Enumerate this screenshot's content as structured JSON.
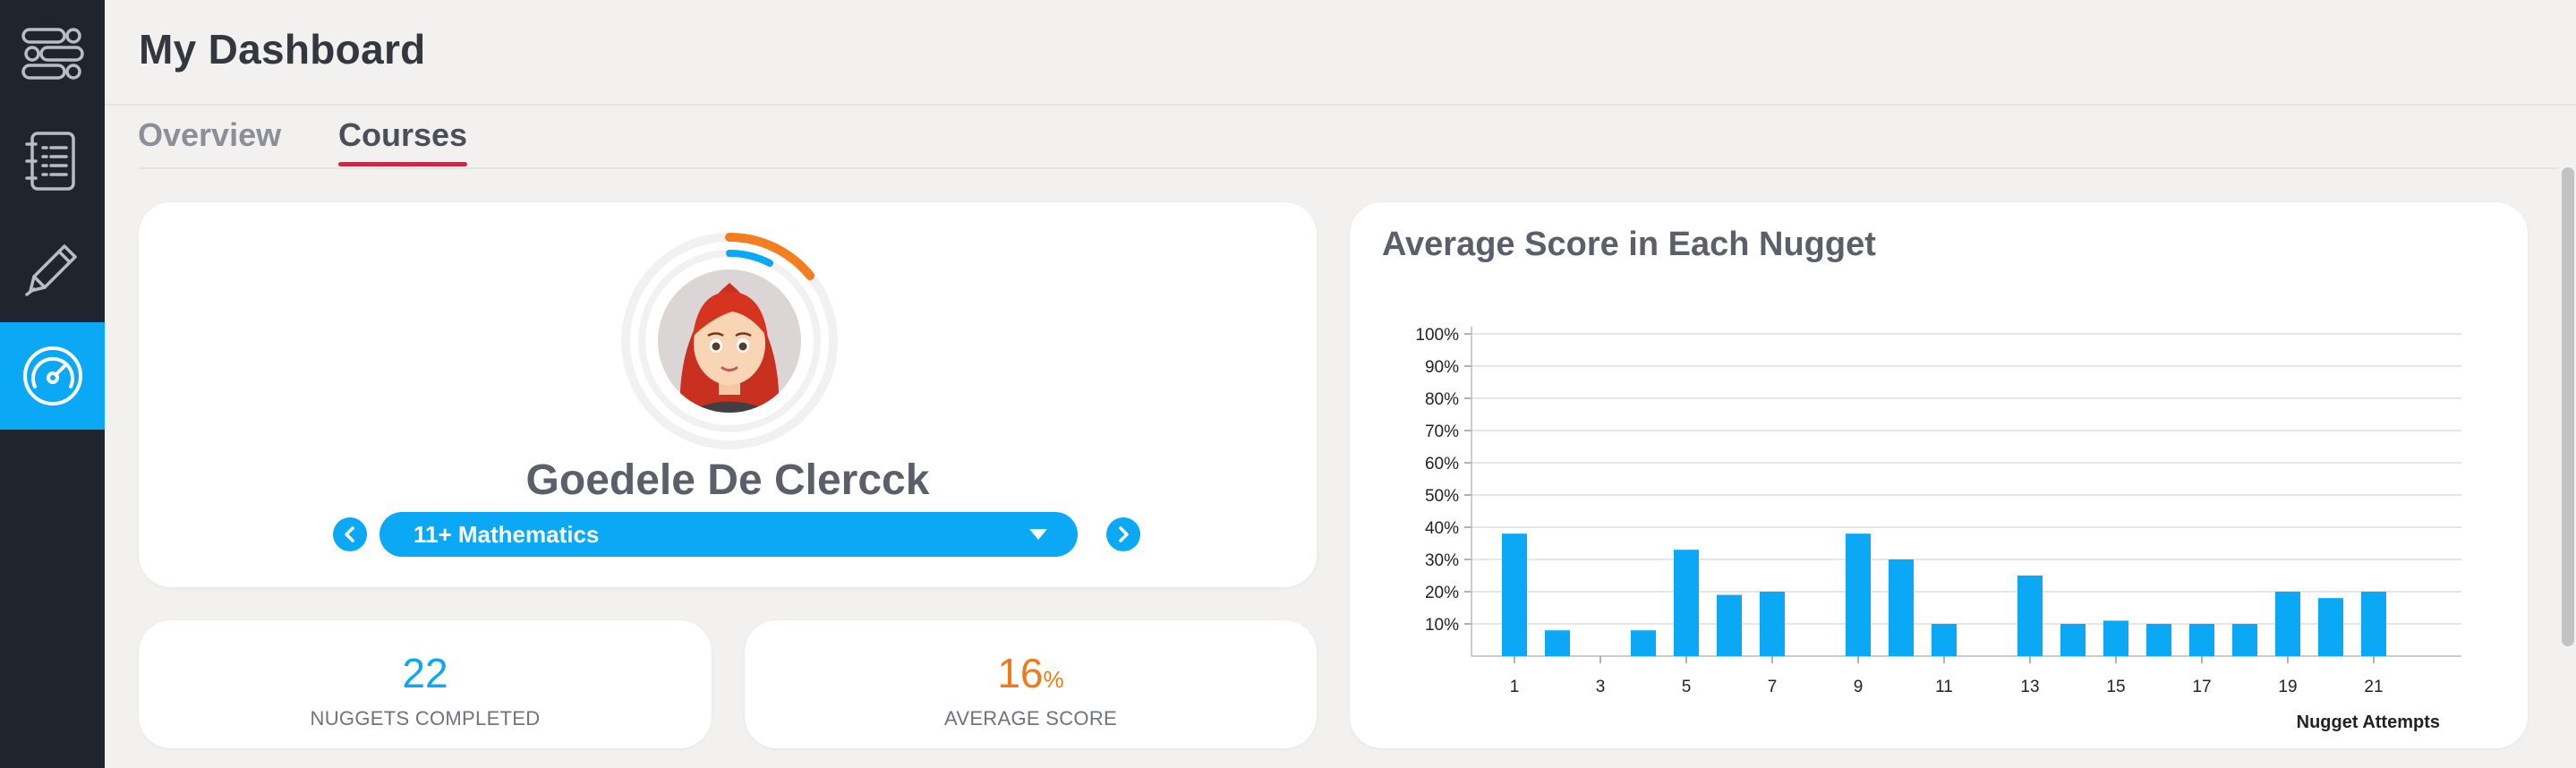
{
  "sidebar": {
    "items": [
      {
        "icon": "workflow-icon"
      },
      {
        "icon": "list-icon"
      },
      {
        "icon": "pencil-icon"
      },
      {
        "icon": "gauge-icon",
        "active": true
      }
    ]
  },
  "header": {
    "title": "My Dashboard"
  },
  "tabs": [
    {
      "label": "Overview",
      "active": false
    },
    {
      "label": "Courses",
      "active": true
    }
  ],
  "profile": {
    "name": "Goedele De Clercck",
    "course": "11+ Mathematics",
    "progress_outer_color": "#f47d20",
    "progress_inner_color": "#0aa8f5"
  },
  "stats": {
    "completed": {
      "value": "22",
      "label": "NUGGETS COMPLETED",
      "color": "#0aa8f5"
    },
    "average": {
      "value": "16",
      "unit": "%",
      "label": "AVERAGE SCORE",
      "color": "#ef7a1a"
    }
  },
  "chart": {
    "title": "Average Score in Each Nugget"
  },
  "chart_data": {
    "type": "bar",
    "title": "Average Score in Each Nugget",
    "xlabel": "Nugget Attempts",
    "ylabel": "",
    "ylim": [
      0,
      100
    ],
    "yticks": [
      "10%",
      "20%",
      "30%",
      "40%",
      "50%",
      "60%",
      "70%",
      "80%",
      "90%",
      "100%"
    ],
    "xticks": [
      "1",
      "3",
      "5",
      "7",
      "9",
      "11",
      "13",
      "15",
      "17",
      "19",
      "21"
    ],
    "categories": [
      1,
      2,
      3,
      4,
      5,
      6,
      7,
      8,
      9,
      10,
      11,
      12,
      13,
      14,
      15,
      16,
      17,
      18,
      19,
      20,
      21
    ],
    "values": [
      38,
      8,
      0,
      8,
      33,
      19,
      20,
      0,
      38,
      30,
      10,
      0,
      25,
      10,
      11,
      10,
      10,
      10,
      20,
      18,
      20
    ],
    "bar_color": "#0aa8f5",
    "grid": true
  }
}
